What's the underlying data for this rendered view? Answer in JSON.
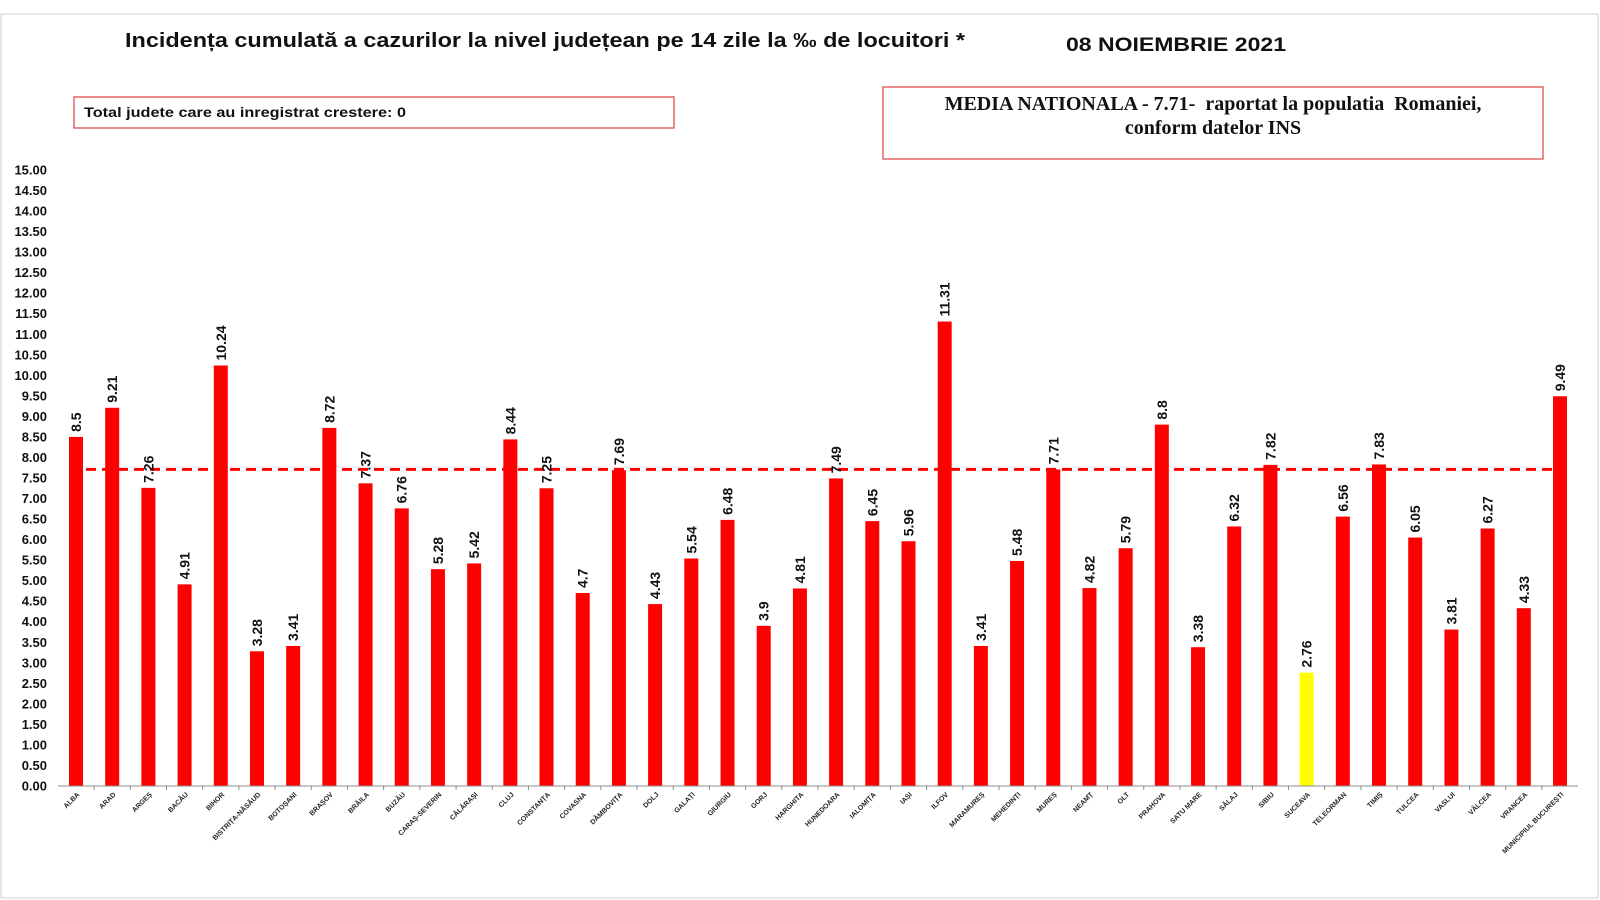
{
  "chart_data": {
    "type": "bar",
    "title": "Incidența cumulată a cazurilor la nivel județean pe 14 zile la ‰ de locuitori *",
    "subtitle": "08 NOIEMBRIE 2021",
    "categories": [
      "ALBA",
      "ARAD",
      "ARGEȘ",
      "BACĂU",
      "BIHOR",
      "BISTRIȚA-NĂSĂUD",
      "BOTOȘANI",
      "BRAȘOV",
      "BRĂILA",
      "BUZĂU",
      "CARAȘ-SEVERIN",
      "CĂLĂRAȘI",
      "CLUJ",
      "CONSTANȚA",
      "COVASNA",
      "DÂMBOVIȚA",
      "DOLJ",
      "GALAȚI",
      "GIURGIU",
      "GORJ",
      "HARGHITA",
      "HUNEDOARA",
      "IALOMIȚA",
      "IAȘI",
      "ILFOV",
      "MARAMUREȘ",
      "MEHEDINȚI",
      "MUREȘ",
      "NEAMȚ",
      "OLT",
      "PRAHOVA",
      "SATU MARE",
      "SĂLAJ",
      "SIBIU",
      "SUCEAVA",
      "TELEORMAN",
      "TIMIȘ",
      "TULCEA",
      "VASLUI",
      "VÂLCEA",
      "VRANCEA",
      "MUNICIPIUL BUCUREȘTI"
    ],
    "values": [
      8.5,
      9.21,
      7.26,
      4.91,
      10.24,
      3.28,
      3.41,
      8.72,
      7.37,
      6.76,
      5.28,
      5.42,
      8.44,
      7.25,
      4.7,
      7.69,
      4.43,
      5.54,
      6.48,
      3.9,
      4.81,
      7.49,
      6.45,
      5.96,
      11.31,
      3.41,
      5.48,
      7.71,
      4.82,
      5.79,
      8.8,
      3.38,
      6.32,
      7.82,
      2.76,
      6.56,
      7.83,
      6.05,
      3.81,
      6.27,
      4.33,
      9.49
    ],
    "ylim": [
      0,
      15
    ],
    "ytick_labels": [
      "0.00",
      "0.50",
      "1.00",
      "1.50",
      "2.00",
      "2.50",
      "3.00",
      "3.50",
      "4.00",
      "4.50",
      "5.00",
      "5.50",
      "6.00",
      "6.50",
      "7.00",
      "7.50",
      "8.00",
      "8.50",
      "9.00",
      "9.50",
      "10.00",
      "10.50",
      "11.00",
      "11.50",
      "12.00",
      "12.50",
      "13.00",
      "13.50",
      "14.00",
      "14.50",
      "15.00"
    ],
    "grid": false,
    "bar_color": "#ff0000",
    "highlight": {
      "index": 34,
      "color": "#ffff00"
    },
    "reference_line": {
      "value": 7.71,
      "color": "#ff0000",
      "dashed": true
    }
  },
  "info_box": {
    "text": "Total judete care au inregistrat crestere: 0"
  },
  "national_average_box": {
    "line1": "MEDIA NATIONALA - 7.71-  raportat la populatia  Romaniei,",
    "line2": "conform datelor INS"
  }
}
